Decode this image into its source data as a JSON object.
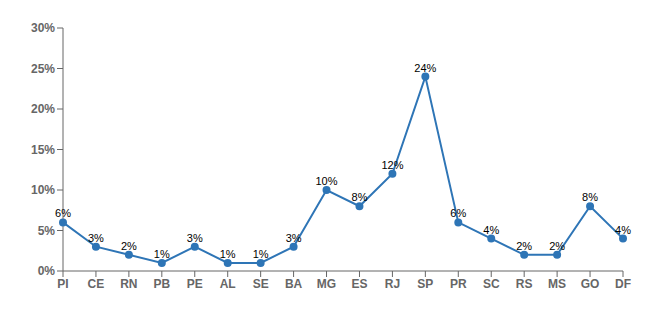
{
  "chart_data": {
    "type": "line",
    "categories": [
      "PI",
      "CE",
      "RN",
      "PB",
      "PE",
      "AL",
      "SE",
      "BA",
      "MG",
      "ES",
      "RJ",
      "SP",
      "PR",
      "SC",
      "RS",
      "MS",
      "GO",
      "DF"
    ],
    "values": [
      6,
      3,
      2,
      1,
      3,
      1,
      1,
      3,
      10,
      8,
      12,
      24,
      6,
      4,
      2,
      2,
      8,
      4
    ],
    "value_labels": [
      "6%",
      "3%",
      "2%",
      "1%",
      "3%",
      "1%",
      "1%",
      "3%",
      "10%",
      "8%",
      "12%",
      "24%",
      "6%",
      "4%",
      "2%",
      "2%",
      "8%",
      "4%"
    ],
    "color": "#2E75B6",
    "marker": "circle",
    "ylim": [
      0,
      30
    ],
    "yticks": [
      {
        "value": 0,
        "label": "0%"
      },
      {
        "value": 5,
        "label": "5%"
      },
      {
        "value": 10,
        "label": "10%"
      },
      {
        "value": 15,
        "label": "15%"
      },
      {
        "value": 20,
        "label": "20%"
      },
      {
        "value": 25,
        "label": "25%"
      },
      {
        "value": 30,
        "label": "30%"
      }
    ],
    "data_labels": true,
    "grid": false
  }
}
